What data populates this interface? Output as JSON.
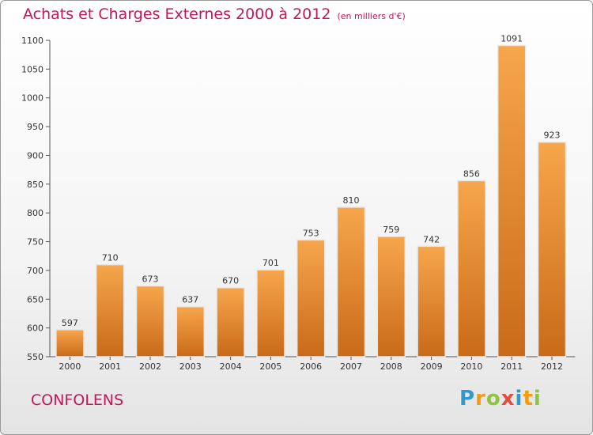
{
  "title": "Achats et Charges Externes 2000 à 2012",
  "subtitle": "(en milliers d'€)",
  "commune": "CONFOLENS",
  "logo": {
    "letters": [
      "P",
      "r",
      "o",
      "x",
      "i",
      "t",
      "i"
    ],
    "colors": [
      "#3399cc",
      "#f39c12",
      "#8cc63f",
      "#e74c3c",
      "#3399cc",
      "#f39c12",
      "#8cc63f"
    ]
  },
  "colors": {
    "bar_top": "#f7a64c",
    "bar_bottom": "#c96a18",
    "bar_edge": "#e8e8e8"
  },
  "chart_data": {
    "type": "bar",
    "title": "Achats et Charges Externes 2000 à 2012",
    "subtitle": "(en milliers d'€)",
    "categories": [
      "2000",
      "2001",
      "2002",
      "2003",
      "2004",
      "2005",
      "2006",
      "2007",
      "2008",
      "2009",
      "2010",
      "2011",
      "2012"
    ],
    "values": [
      597,
      710,
      673,
      637,
      670,
      701,
      753,
      810,
      759,
      742,
      856,
      1091,
      923
    ],
    "data_labels": [
      "597",
      "710",
      "673",
      "637",
      "670",
      "701",
      "753",
      "810",
      "759",
      "742",
      "856",
      "1091",
      "923"
    ],
    "ylim": [
      550,
      1100
    ],
    "yticks": [
      550,
      600,
      650,
      700,
      750,
      800,
      850,
      900,
      950,
      1000,
      1050,
      1100
    ],
    "ytick_labels": [
      "550",
      "600",
      "650",
      "700",
      "750",
      "800",
      "850",
      "900",
      "950",
      "1000",
      "1050",
      "1100"
    ],
    "xlabel": "",
    "ylabel": "",
    "grid": false,
    "legend": "none"
  }
}
